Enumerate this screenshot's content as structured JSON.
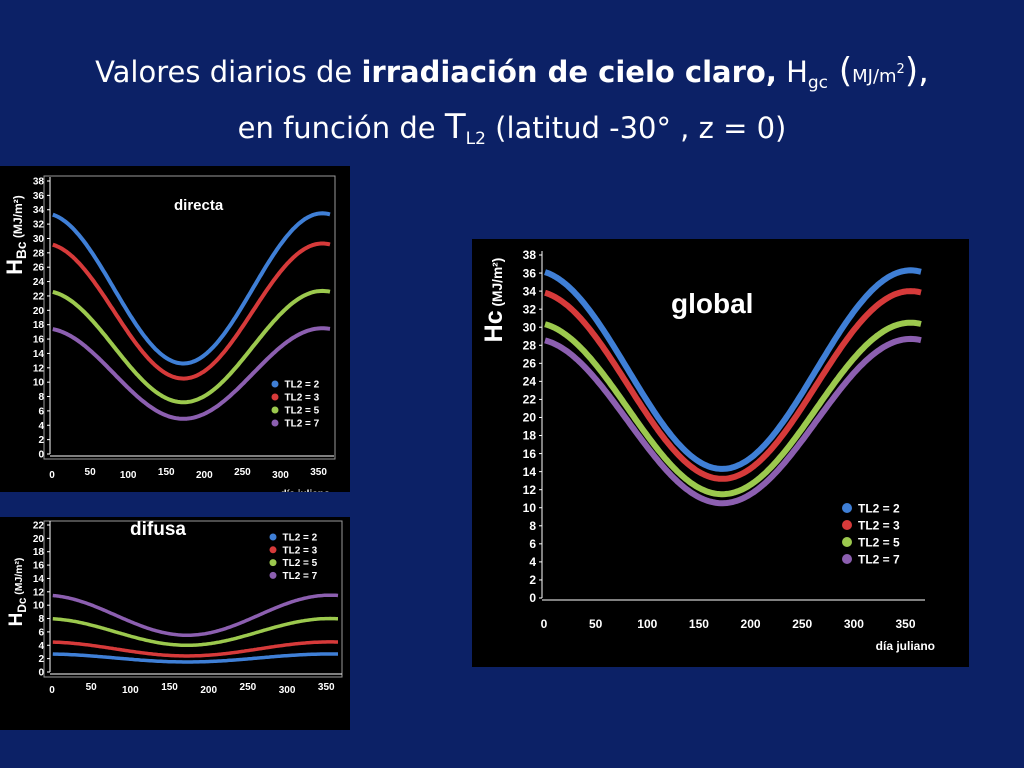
{
  "slide": {
    "title_part1": "Valores diarios de ",
    "title_bold": "irradiación de cielo claro,",
    "title_h": " H",
    "title_h_sub": "gc",
    "title_paren_open": " (",
    "title_unit": "MJ/m",
    "title_unit_sup": "2",
    "title_paren_close": "),",
    "title_line2_a": "en función de ",
    "title_tl": "T",
    "title_tl_sub": "L2",
    "title_line2_b": " (latitud -30° , z = 0)"
  },
  "colors": {
    "background": "#0c2166",
    "TL2 = 2": "#3f7fd6",
    "TL2 = 3": "#d63a3a",
    "TL2 = 5": "#9cc94e",
    "TL2 = 7": "#8c5fb0"
  },
  "chart_data": [
    {
      "id": "directa",
      "type": "line",
      "title": "directa",
      "ylabel_main": "H",
      "ylabel_sub": "Bc",
      "ylabel_unit": " (MJ/m²)",
      "xlabel": "día juliano",
      "xlim": [
        0,
        365
      ],
      "ylim": [
        0,
        38
      ],
      "xticks": [
        0,
        50,
        100,
        150,
        200,
        250,
        300,
        350
      ],
      "yticks": [
        0,
        2,
        4,
        6,
        8,
        10,
        12,
        14,
        16,
        18,
        20,
        22,
        24,
        26,
        28,
        30,
        32,
        34,
        36,
        38
      ],
      "legend_position": "bottom-right",
      "series": [
        {
          "name": "TL2 = 2",
          "min": 12.6,
          "max": 33.5
        },
        {
          "name": "TL2 = 3",
          "min": 10.5,
          "max": 29.3
        },
        {
          "name": "TL2 = 5",
          "min": 7.2,
          "max": 22.7
        },
        {
          "name": "TL2 = 7",
          "min": 4.9,
          "max": 17.5
        }
      ]
    },
    {
      "id": "difusa",
      "type": "line",
      "title": "difusa",
      "ylabel_main": "H",
      "ylabel_sub": "Dc",
      "ylabel_unit": " (MJ/m²)",
      "xlabel": "",
      "xlim": [
        0,
        365
      ],
      "ylim": [
        0,
        22
      ],
      "xticks": [
        0,
        50,
        100,
        150,
        200,
        250,
        300,
        350
      ],
      "yticks": [
        0,
        2,
        4,
        6,
        8,
        10,
        12,
        14,
        16,
        18,
        20,
        22
      ],
      "legend_position": "top-right",
      "series": [
        {
          "name": "TL2 = 2",
          "min": 1.5,
          "max": 2.7
        },
        {
          "name": "TL2 = 3",
          "min": 2.4,
          "max": 4.5
        },
        {
          "name": "TL2 = 5",
          "min": 4.0,
          "max": 8.0
        },
        {
          "name": "TL2 = 7",
          "min": 5.5,
          "max": 11.5
        }
      ]
    },
    {
      "id": "global",
      "type": "line",
      "title": "global",
      "ylabel_main": "Hc",
      "ylabel_sub": "",
      "ylabel_unit": " (MJ/m²)",
      "xlabel": "día juliano",
      "xlim": [
        0,
        365
      ],
      "ylim": [
        0,
        38
      ],
      "xticks": [
        0,
        50,
        100,
        150,
        200,
        250,
        300,
        350
      ],
      "yticks": [
        0,
        2,
        4,
        6,
        8,
        10,
        12,
        14,
        16,
        18,
        20,
        22,
        24,
        26,
        28,
        30,
        32,
        34,
        36,
        38
      ],
      "legend_position": "bottom-right",
      "series": [
        {
          "name": "TL2 = 2",
          "min": 14.3,
          "max": 36.3
        },
        {
          "name": "TL2 = 3",
          "min": 13.2,
          "max": 34.0
        },
        {
          "name": "TL2 = 5",
          "min": 11.5,
          "max": 30.5
        },
        {
          "name": "TL2 = 7",
          "min": 10.5,
          "max": 28.7
        }
      ]
    }
  ]
}
